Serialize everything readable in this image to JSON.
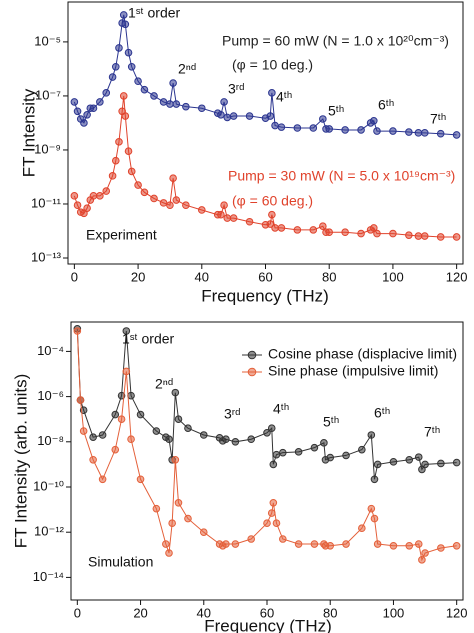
{
  "chart_data": [
    {
      "type": "scatter",
      "x_label": "Frequency (THz)",
      "y_label": "FT Intensity",
      "yscale": "log",
      "legend": "inline",
      "xlim": [
        -2,
        122
      ],
      "xticks": [
        0,
        20,
        40,
        60,
        80,
        100,
        120
      ],
      "ylim": [
        6e-14,
        0.0003
      ],
      "yticks": [
        {
          "value": 1e-13,
          "label": "10⁻¹³"
        },
        {
          "value": 1e-11,
          "label": "10⁻¹¹"
        },
        {
          "value": 1e-09,
          "label": "10⁻⁹"
        },
        {
          "value": 1e-07,
          "label": "10⁻⁷"
        },
        {
          "value": 1e-05,
          "label": "10⁻⁵"
        }
      ],
      "annotations": [
        "1ˢᵗ order",
        "2ⁿᵈ",
        "3ʳᵈ",
        "4ᵗʰ",
        "5ᵗʰ",
        "6ᵗʰ",
        "7ᵗʰ",
        "Experiment",
        "(φ = 10 deg.)",
        "(φ = 60 deg.)"
      ],
      "x": [
        0,
        1,
        2,
        3,
        4,
        5,
        6,
        8,
        10,
        12,
        13,
        14,
        15,
        15.5,
        16,
        17,
        18,
        20,
        22,
        25,
        28,
        30,
        31,
        32,
        35,
        40,
        45,
        46,
        47,
        48,
        50,
        55,
        60,
        61.5,
        62,
        63,
        65,
        70,
        75,
        78,
        79,
        80,
        85,
        90,
        93,
        94,
        95,
        100,
        105,
        108,
        110,
        115,
        120
      ],
      "series": [
        {
          "name": "Pump = 60 mW (N = 1.0 x 10²⁰cm⁻³)",
          "color": "#2b3590",
          "values": [
            6e-08,
            2.7e-08,
            1.4e-08,
            1e-08,
            2e-08,
            3.5e-08,
            3.5e-08,
            6e-08,
            1.3e-07,
            5e-07,
            1.2e-06,
            6e-06,
            5e-05,
            0.0001,
            4.5e-05,
            4e-06,
            1.2e-06,
            3.5e-07,
            1.7e-07,
            1e-07,
            6e-08,
            5e-08,
            3e-07,
            5e-08,
            4e-08,
            3.5e-08,
            2.3e-08,
            2e-08,
            6e-08,
            1.6e-08,
            1.8e-08,
            1.8e-08,
            1.5e-08,
            1.8e-08,
            1.3e-07,
            8e-09,
            7e-09,
            6.5e-09,
            6.5e-09,
            1.4e-08,
            6e-09,
            6e-09,
            5.5e-09,
            5.5e-09,
            1e-08,
            1.2e-08,
            5e-09,
            5e-09,
            4.6e-09,
            4.3e-09,
            4.3e-09,
            4e-09,
            3.6e-09
          ]
        },
        {
          "name": "Pump = 30 mW (N = 5.0 x 10¹⁹cm⁻³)",
          "color": "#e0432c",
          "values": [
            2e-11,
            9e-12,
            5e-12,
            4.5e-12,
            7e-12,
            1.4e-11,
            2e-11,
            2e-11,
            3e-11,
            1.1e-10,
            4e-10,
            2e-09,
            2.7e-08,
            1e-07,
            1.8e-08,
            9e-10,
            1.6e-10,
            5e-11,
            2.7e-11,
            1.6e-11,
            1.1e-11,
            9e-12,
            9e-11,
            1.4e-11,
            9e-12,
            6e-12,
            4e-12,
            4e-12,
            9e-12,
            3e-12,
            3e-12,
            2.2e-12,
            1.7e-12,
            1.8e-12,
            4e-12,
            1.3e-12,
            1.3e-12,
            1.1e-12,
            1.1e-12,
            1.5e-12,
            9e-13,
            9e-13,
            9e-13,
            8e-13,
            1.1e-12,
            1.3e-12,
            8e-13,
            8e-13,
            7e-13,
            6.5e-13,
            6.5e-13,
            6e-13,
            6e-13
          ]
        }
      ]
    },
    {
      "type": "scatter",
      "x_label": "Frequency (THz)",
      "y_label": "FT Intensity (arb. units)",
      "yscale": "log",
      "legend": "upper right",
      "xlim": [
        -2,
        122
      ],
      "xticks": [
        0,
        20,
        40,
        60,
        80,
        100,
        120
      ],
      "ylim": [
        1e-15,
        0.002
      ],
      "yticks": [
        {
          "value": 1e-14,
          "label": "10⁻¹⁴"
        },
        {
          "value": 1e-12,
          "label": "10⁻¹²"
        },
        {
          "value": 1e-10,
          "label": "10⁻¹⁰"
        },
        {
          "value": 1e-08,
          "label": "10⁻⁸"
        },
        {
          "value": 1e-06,
          "label": "10⁻⁶"
        },
        {
          "value": 0.0001,
          "label": "10⁻⁴"
        }
      ],
      "annotations": [
        "1ˢᵗ order",
        "2ⁿᵈ",
        "3ʳᵈ",
        "4ᵗʰ",
        "5ᵗʰ",
        "6ᵗʰ",
        "7ᵗʰ",
        "Simulation"
      ],
      "x": [
        0,
        1,
        2,
        5,
        8,
        12,
        14,
        15.5,
        17,
        20,
        25,
        28,
        29,
        30,
        31,
        32,
        35,
        40,
        45,
        46,
        47,
        50,
        55,
        60,
        61.5,
        62,
        63,
        65,
        70,
        75,
        78,
        78.5,
        80,
        85,
        90,
        93,
        94,
        95,
        100,
        105,
        108,
        109,
        110,
        115,
        120
      ],
      "series": [
        {
          "name": "Cosine phase (displacive limit)",
          "color": "#333333",
          "values": [
            0.001,
            7e-07,
            2.5e-07,
            1.6e-08,
            2e-08,
            1.6e-07,
            1.1e-06,
            0.0008,
            1.1e-06,
            1.6e-07,
            3e-08,
            1.6e-08,
            1.3e-08,
            1.6e-09,
            1.5e-06,
            1e-07,
            4e-08,
            2e-08,
            1.5e-08,
            1.1e-08,
            1.3e-08,
            1e-08,
            1.3e-08,
            2.5e-08,
            4e-08,
            1e-09,
            2.7e-09,
            3.3e-09,
            3.6e-09,
            5.5e-09,
            9e-09,
            1.6e-09,
            2e-09,
            2.5e-09,
            4.5e-09,
            2e-08,
            2.2e-10,
            1e-09,
            1.3e-09,
            1.6e-09,
            2.1e-09,
            6e-10,
            1e-09,
            1.1e-09,
            1.2e-09
          ]
        },
        {
          "name": "Sine phase (impulsive limit)",
          "color": "#e4603a",
          "values": [
            0.0008,
            7e-07,
            3e-08,
            1.6e-09,
            2.2e-10,
            4.5e-09,
            1e-07,
            1.3e-05,
            1.3e-08,
            2.2e-10,
            1.1e-11,
            3e-13,
            1.2e-13,
            2.5e-12,
            1.6e-09,
            2e-11,
            4e-12,
            1e-12,
            3e-13,
            2.5e-13,
            3e-13,
            3e-13,
            5e-13,
            2.5e-12,
            7e-12,
            2e-11,
            2.5e-12,
            5e-13,
            3e-13,
            3e-13,
            3e-13,
            2.5e-13,
            2.5e-13,
            3e-13,
            1.5e-12,
            1.1e-11,
            4e-12,
            3e-13,
            2.5e-13,
            2.5e-13,
            3e-13,
            6e-14,
            1.2e-13,
            2e-13,
            2.5e-13
          ]
        }
      ]
    }
  ]
}
